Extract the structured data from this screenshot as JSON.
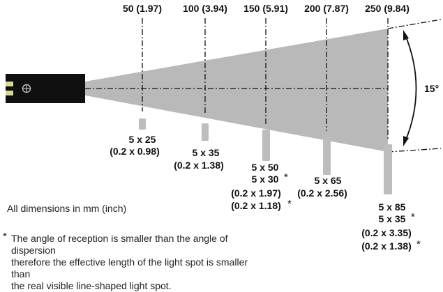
{
  "distances": [
    {
      "label": "50 (1.97)"
    },
    {
      "label": "100 (3.94)"
    },
    {
      "label": "150 (5.91)"
    },
    {
      "label": "200 (7.87)"
    },
    {
      "label": "250 (9.84)"
    }
  ],
  "angle_label": "15°",
  "spots": [
    {
      "lines": [
        "5 x 25",
        "(0.2 x 0.98)"
      ]
    },
    {
      "lines": [
        "5 x 35",
        "(0.2 x 1.38)"
      ]
    },
    {
      "lines": [
        "5 x 50",
        "5 x 30",
        "(0.2 x 1.97)",
        "(0.2 x 1.18)"
      ]
    },
    {
      "lines": [
        "5 x 65",
        "(0.2 x 2.56)"
      ]
    },
    {
      "lines": [
        "5 x 85",
        "5 x 35",
        "(0.2 x 3.35)",
        "(0.2 x 1.38)"
      ]
    }
  ],
  "asterisk": "*",
  "dimension_note": "All dimensions in mm (inch)",
  "footnote_lines": [
    "The angle of reception is smaller than the angle of dispersion",
    "therefore the effective length of the light spot is smaller than",
    "the real visible line-shaped light spot."
  ],
  "colors": {
    "beam": "#b9b9b9",
    "spot_bar": "#bdbdbd",
    "sensor": "#0f0f0f",
    "sensor_led": "#d8d890",
    "line": "#111111"
  }
}
